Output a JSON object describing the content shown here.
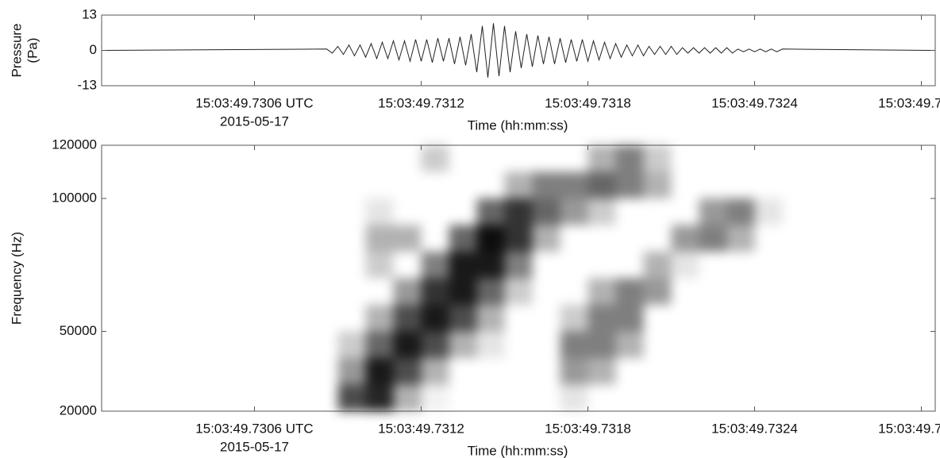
{
  "chart_data": [
    {
      "type": "line",
      "ylabel": [
        "Pressure",
        "(Pa)"
      ],
      "xlabel": "Time (hh:mm:ss)",
      "date": "2015-05-17",
      "color": "#222222",
      "xlim": [
        49.73005,
        49.73305
      ],
      "xticks": [
        {
          "value": 49.7306,
          "label": "15:03:49.7306 UTC"
        },
        {
          "value": 49.7312,
          "label": "15:03:49.7312"
        },
        {
          "value": 49.7318,
          "label": "15:03:49.7318"
        },
        {
          "value": 49.7324,
          "label": "15:03:49.7324"
        },
        {
          "value": 49.733,
          "label": "15:03:49.7330"
        }
      ],
      "ylim": [
        -13,
        13
      ],
      "yticks": [
        -13,
        0,
        13
      ],
      "x": [
        49.73005,
        49.73086,
        49.73088,
        49.7309,
        49.73092,
        49.73094,
        49.73096,
        49.73098,
        49.731,
        49.73102,
        49.73104,
        49.73106,
        49.73108,
        49.7311,
        49.73112,
        49.73114,
        49.73116,
        49.73118,
        49.7312,
        49.73122,
        49.73124,
        49.73126,
        49.73128,
        49.7313,
        49.73132,
        49.73134,
        49.73136,
        49.73138,
        49.7314,
        49.73142,
        49.73144,
        49.73146,
        49.73148,
        49.7315,
        49.73152,
        49.73154,
        49.73156,
        49.73158,
        49.7316,
        49.73162,
        49.73164,
        49.73166,
        49.73168,
        49.7317,
        49.73172,
        49.73174,
        49.73176,
        49.73178,
        49.7318,
        49.73182,
        49.73184,
        49.73186,
        49.73188,
        49.7319,
        49.73192,
        49.73194,
        49.73196,
        49.73198,
        49.732,
        49.73202,
        49.73204,
        49.73206,
        49.73208,
        49.7321,
        49.73212,
        49.73214,
        49.73216,
        49.73218,
        49.7322,
        49.73222,
        49.73224,
        49.73226,
        49.73228,
        49.7323,
        49.73232,
        49.73234,
        49.73236,
        49.73238,
        49.7324,
        49.73242,
        49.73244,
        49.73246,
        49.73248,
        49.7325,
        49.73305
      ],
      "values": [
        0,
        0.5,
        -1,
        1.5,
        -1.5,
        2,
        -2,
        2,
        -2.5,
        2.5,
        -3,
        3,
        -3,
        3.5,
        -3.5,
        3.5,
        -4,
        4,
        -4,
        4,
        -4.5,
        4.5,
        -4,
        4.5,
        -5,
        5,
        -5.5,
        6,
        -8,
        9,
        -10,
        10,
        -9.5,
        9,
        -8,
        7,
        -6.5,
        6,
        -6,
        5.5,
        -5,
        5,
        -5,
        4.5,
        -4.5,
        4,
        -4,
        4,
        -4,
        3.5,
        -3.5,
        3,
        -3,
        2.5,
        -2.5,
        2,
        -2,
        2,
        -2,
        1.5,
        -1.5,
        1.5,
        -1.5,
        1.5,
        -1.5,
        1,
        -1,
        1,
        -1,
        1,
        -1,
        1,
        -1,
        1,
        -1,
        0.5,
        -0.5,
        0.5,
        -0.5,
        0.5,
        -0.5,
        0.5,
        -0.5,
        0.5,
        0
      ]
    },
    {
      "type": "heatmap",
      "ylabel": "Frequency (Hz)",
      "xlabel": "Time (hh:mm:ss)",
      "date": "2015-05-17",
      "color": "#000000",
      "xlim": [
        49.73005,
        49.73305
      ],
      "xticks": [
        {
          "value": 49.7306,
          "label": "15:03:49.7306 UTC"
        },
        {
          "value": 49.7312,
          "label": "15:03:49.7312"
        },
        {
          "value": 49.7318,
          "label": "15:03:49.7318"
        },
        {
          "value": 49.7324,
          "label": "15:03:49.7324"
        },
        {
          "value": 49.733,
          "label": "15:03:49.7330"
        }
      ],
      "ylim": [
        20000,
        120000
      ],
      "yticks": [
        20000,
        50000,
        100000,
        120000
      ],
      "x_bins": [
        49.7309,
        49.731,
        49.7311,
        49.7312,
        49.7313,
        49.7314,
        49.7315,
        49.7316,
        49.7317,
        49.7318,
        49.7319,
        49.732,
        49.7321,
        49.7322,
        49.7323,
        49.7324,
        49.7325,
        49.7326,
        49.7327
      ],
      "y_bins": [
        20000,
        30000,
        40000,
        50000,
        60000,
        70000,
        80000,
        90000,
        100000,
        110000,
        120000
      ],
      "z": [
        [
          0.7,
          0.85,
          0.3,
          0.05,
          0,
          0,
          0,
          0,
          0.1,
          0,
          0,
          0,
          0,
          0,
          0,
          0,
          0,
          0
        ],
        [
          0.4,
          0.9,
          0.7,
          0.3,
          0,
          0,
          0,
          0,
          0.4,
          0.3,
          0,
          0,
          0,
          0,
          0,
          0,
          0,
          0
        ],
        [
          0.2,
          0.6,
          0.9,
          0.7,
          0.3,
          0.1,
          0,
          0,
          0.5,
          0.5,
          0.3,
          0,
          0,
          0,
          0,
          0,
          0,
          0
        ],
        [
          0,
          0.3,
          0.7,
          0.9,
          0.7,
          0.3,
          0,
          0,
          0.2,
          0.5,
          0.5,
          0,
          0,
          0,
          0,
          0,
          0,
          0
        ],
        [
          0,
          0,
          0.4,
          0.8,
          0.9,
          0.6,
          0.2,
          0,
          0,
          0.3,
          0.5,
          0.4,
          0,
          0,
          0,
          0,
          0,
          0
        ],
        [
          0,
          0.2,
          0,
          0.5,
          0.9,
          0.9,
          0.5,
          0,
          0,
          0,
          0,
          0.3,
          0.1,
          0,
          0,
          0,
          0,
          0
        ],
        [
          0,
          0.3,
          0.3,
          0,
          0.6,
          0.95,
          0.8,
          0.3,
          0,
          0,
          0,
          0,
          0.4,
          0.5,
          0.3,
          0,
          0,
          0
        ],
        [
          0,
          0.1,
          0,
          0,
          0,
          0.6,
          0.8,
          0.6,
          0.4,
          0.2,
          0,
          0,
          0,
          0.4,
          0.5,
          0.1,
          0,
          0
        ],
        [
          0,
          0,
          0,
          0,
          0,
          0,
          0.3,
          0.5,
          0.5,
          0.6,
          0.5,
          0.3,
          0,
          0,
          0,
          0,
          0,
          0
        ],
        [
          0,
          0,
          0,
          0.2,
          0,
          0,
          0,
          0,
          0,
          0.3,
          0.5,
          0.2,
          0,
          0,
          0,
          0,
          0,
          0
        ]
      ]
    }
  ]
}
